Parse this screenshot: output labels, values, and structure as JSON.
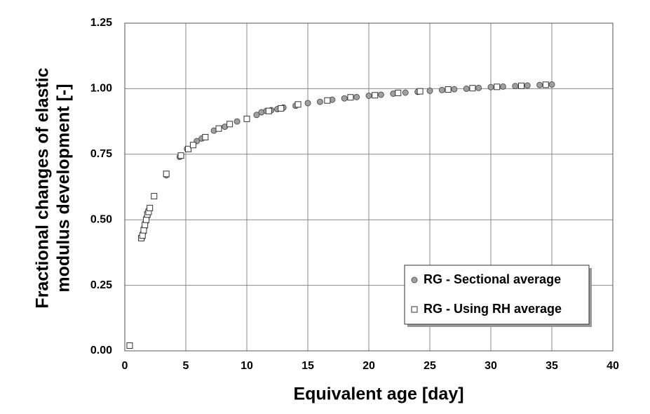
{
  "chart_data": {
    "type": "scatter",
    "xlabel": "Equivalent age [day]",
    "ylabel": [
      "Fractional changes of elastic",
      "modulus development [-]"
    ],
    "xlim": [
      0,
      40
    ],
    "xticks": [
      0,
      5,
      10,
      15,
      20,
      25,
      30,
      35,
      40
    ],
    "ylim": [
      0,
      1.25
    ],
    "yticks": [
      {
        "value": 0,
        "label": "0.00"
      },
      0.25,
      {
        "value": 0.5,
        "label": "0.50"
      },
      0.75,
      {
        "value": 1,
        "label": "1.00"
      },
      1.25
    ],
    "grid": true,
    "legend": "lower right",
    "series": [
      {
        "name": "RG - Sectional average",
        "color": "#a0a0a0",
        "marker": "circle",
        "x": [
          1.4,
          1.5,
          1.6,
          1.7,
          1.8,
          1.9,
          2.0,
          3.4,
          4.5,
          5.1,
          5.9,
          6.3,
          7.3,
          8.2,
          9.2,
          10.8,
          11.2,
          11.6,
          12.0,
          12.5,
          13.0,
          14.0,
          15.0,
          16.0,
          17.0,
          18.0,
          19.0,
          20.0,
          21.0,
          22.0,
          23.0,
          24.0,
          25.0,
          26.0,
          27.0,
          28.0,
          29.0,
          30.0,
          31.0,
          32.0,
          33.0,
          34.0,
          35.0
        ],
        "values": [
          0.43,
          0.45,
          0.47,
          0.49,
          0.51,
          0.53,
          0.54,
          0.67,
          0.74,
          0.77,
          0.8,
          0.81,
          0.84,
          0.855,
          0.875,
          0.9,
          0.91,
          0.915,
          0.918,
          0.922,
          0.928,
          0.935,
          0.945,
          0.95,
          0.958,
          0.963,
          0.968,
          0.973,
          0.977,
          0.981,
          0.985,
          0.988,
          0.992,
          0.995,
          0.998,
          1.0,
          1.003,
          1.006,
          1.008,
          1.01,
          1.012,
          1.014,
          1.016
        ]
      },
      {
        "name": "RG - Using RH average",
        "color": "#ffffff",
        "marker": "square",
        "x": [
          0.4,
          1.35,
          1.45,
          1.55,
          1.65,
          1.75,
          1.85,
          1.95,
          2.05,
          2.4,
          3.4,
          4.6,
          5.2,
          5.6,
          6.6,
          7.7,
          8.6,
          10.0,
          11.8,
          12.8,
          14.2,
          16.6,
          18.5,
          20.5,
          22.4,
          24.2,
          26.5,
          28.5,
          30.5,
          32.5,
          34.5
        ],
        "values": [
          0.02,
          0.43,
          0.44,
          0.46,
          0.48,
          0.5,
          0.52,
          0.53,
          0.545,
          0.59,
          0.675,
          0.745,
          0.77,
          0.785,
          0.815,
          0.848,
          0.865,
          0.885,
          0.915,
          0.925,
          0.94,
          0.955,
          0.967,
          0.975,
          0.984,
          0.99,
          0.997,
          1.002,
          1.007,
          1.011,
          1.015
        ]
      }
    ]
  }
}
